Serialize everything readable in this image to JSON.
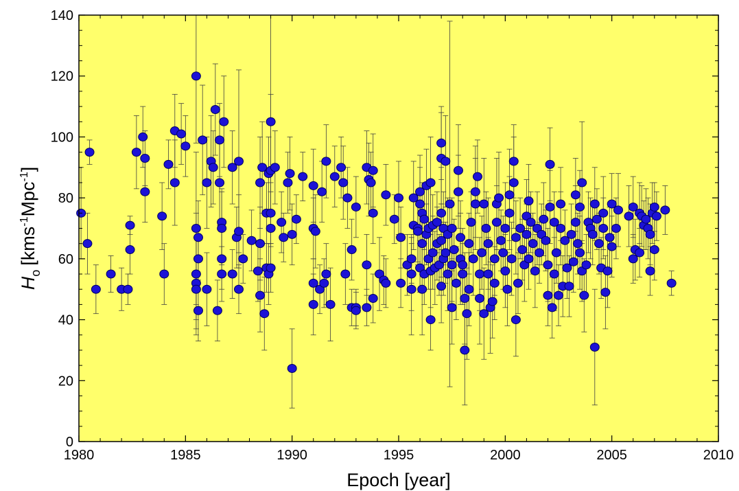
{
  "chart_data": {
    "type": "scatter",
    "title": "",
    "xlabel": "Epoch [year]",
    "ylabel": {
      "symbol": "H",
      "subscript": "o",
      "units": "[kms",
      "exp1": "-1",
      "mid": "Mpc",
      "exp2": "-1",
      "close": "]"
    },
    "xlim": [
      1980,
      2010
    ],
    "ylim": [
      0,
      140
    ],
    "x_ticks": [
      "1980",
      "1985",
      "1990",
      "1995",
      "2000",
      "2005",
      "2010"
    ],
    "y_ticks": [
      "0",
      "20",
      "40",
      "60",
      "80",
      "100",
      "120",
      "140"
    ],
    "grid": false,
    "legend": "none",
    "colors": {
      "plot_background": "#ffff6b",
      "marker_fill": "#1c12d6",
      "marker_stroke": "#000060",
      "error_bar": "#404040"
    },
    "points": [
      [
        1980.1,
        75,
        15
      ],
      [
        1980.4,
        65,
        10
      ],
      [
        1980.5,
        95,
        4
      ],
      [
        1980.8,
        50,
        8
      ],
      [
        1981.5,
        55,
        6
      ],
      [
        1982.0,
        50,
        7
      ],
      [
        1982.3,
        50,
        5
      ],
      [
        1982.4,
        63,
        8
      ],
      [
        1982.4,
        71,
        3
      ],
      [
        1982.7,
        95,
        12
      ],
      [
        1983.0,
        100,
        10
      ],
      [
        1983.1,
        82,
        10
      ],
      [
        1983.1,
        93,
        9
      ],
      [
        1983.9,
        74,
        11
      ],
      [
        1984.0,
        55,
        10
      ],
      [
        1984.2,
        91,
        8
      ],
      [
        1984.5,
        85,
        14
      ],
      [
        1984.5,
        102,
        12
      ],
      [
        1984.8,
        101,
        10
      ],
      [
        1985.0,
        97,
        10
      ],
      [
        1985.5,
        120,
        22
      ],
      [
        1985.5,
        70,
        25
      ],
      [
        1985.5,
        55,
        20
      ],
      [
        1985.5,
        52,
        15
      ],
      [
        1985.5,
        50,
        10
      ],
      [
        1985.6,
        43,
        10
      ],
      [
        1985.6,
        60,
        8
      ],
      [
        1985.6,
        67,
        12
      ],
      [
        1985.8,
        99,
        18
      ],
      [
        1986.0,
        85,
        15
      ],
      [
        1986.0,
        50,
        12
      ],
      [
        1986.2,
        92,
        15
      ],
      [
        1986.3,
        90,
        12
      ],
      [
        1986.4,
        109,
        15
      ],
      [
        1986.5,
        43,
        10
      ],
      [
        1986.6,
        99,
        12
      ],
      [
        1986.6,
        85,
        14
      ],
      [
        1986.7,
        60,
        10
      ],
      [
        1986.7,
        55,
        9
      ],
      [
        1986.7,
        72,
        11
      ],
      [
        1986.7,
        70,
        12
      ],
      [
        1986.8,
        105,
        15
      ],
      [
        1987.2,
        55,
        8
      ],
      [
        1987.2,
        90,
        12
      ],
      [
        1987.4,
        67,
        10
      ],
      [
        1987.5,
        92,
        30
      ],
      [
        1987.5,
        69,
        12
      ],
      [
        1987.5,
        50,
        8
      ],
      [
        1987.7,
        60,
        8
      ],
      [
        1988.1,
        66,
        10
      ],
      [
        1988.4,
        56,
        10
      ],
      [
        1988.5,
        48,
        12
      ],
      [
        1988.5,
        85,
        15
      ],
      [
        1988.5,
        65,
        12
      ],
      [
        1988.6,
        90,
        15
      ],
      [
        1988.7,
        42,
        12
      ],
      [
        1988.8,
        57,
        8
      ],
      [
        1988.8,
        75,
        10
      ],
      [
        1988.9,
        88,
        12
      ],
      [
        1988.9,
        55,
        10
      ],
      [
        1989.0,
        75,
        10
      ],
      [
        1989.0,
        70,
        12
      ],
      [
        1989.0,
        89,
        25
      ],
      [
        1989.0,
        57,
        8
      ],
      [
        1989.0,
        105,
        35
      ],
      [
        1989.2,
        90,
        12
      ],
      [
        1989.5,
        72,
        10
      ],
      [
        1989.6,
        67,
        8
      ],
      [
        1989.8,
        85,
        10
      ],
      [
        1989.9,
        88,
        12
      ],
      [
        1990.0,
        68,
        10
      ],
      [
        1990.0,
        24,
        13
      ],
      [
        1990.2,
        73,
        8
      ],
      [
        1990.5,
        87,
        8
      ],
      [
        1991.0,
        45,
        10
      ],
      [
        1991.0,
        84,
        12
      ],
      [
        1991.0,
        70,
        10
      ],
      [
        1991.0,
        52,
        8
      ],
      [
        1991.1,
        69,
        12
      ],
      [
        1991.3,
        50,
        8
      ],
      [
        1991.4,
        82,
        10
      ],
      [
        1991.5,
        52,
        8
      ],
      [
        1991.6,
        92,
        12
      ],
      [
        1991.6,
        55,
        10
      ],
      [
        1991.8,
        45,
        12
      ],
      [
        1992.0,
        87,
        10
      ],
      [
        1992.3,
        90,
        10
      ],
      [
        1992.4,
        85,
        12
      ],
      [
        1992.5,
        55,
        10
      ],
      [
        1992.6,
        80,
        10
      ],
      [
        1992.8,
        44,
        6
      ],
      [
        1992.8,
        63,
        10
      ],
      [
        1993.0,
        77,
        10
      ],
      [
        1993.0,
        44,
        6
      ],
      [
        1993.0,
        43,
        6
      ],
      [
        1993.5,
        90,
        12
      ],
      [
        1993.5,
        58,
        10
      ],
      [
        1993.5,
        44,
        6
      ],
      [
        1993.6,
        86,
        12
      ],
      [
        1993.7,
        85,
        10
      ],
      [
        1993.8,
        89,
        12
      ],
      [
        1993.8,
        47,
        8
      ],
      [
        1993.8,
        75,
        10
      ],
      [
        1994.1,
        55,
        12
      ],
      [
        1994.3,
        53,
        8
      ],
      [
        1994.4,
        81,
        10
      ],
      [
        1994.4,
        52,
        8
      ],
      [
        1994.8,
        73,
        8
      ],
      [
        1995.0,
        80,
        12
      ],
      [
        1995.1,
        52,
        8
      ],
      [
        1995.1,
        67,
        10
      ],
      [
        1995.4,
        58,
        10
      ],
      [
        1995.6,
        55,
        12
      ],
      [
        1995.6,
        60,
        8
      ],
      [
        1995.6,
        50,
        15
      ],
      [
        1995.7,
        80,
        12
      ],
      [
        1995.7,
        71,
        8
      ],
      [
        1995.9,
        70,
        12
      ],
      [
        1995.9,
        69,
        10
      ],
      [
        1996.0,
        57,
        8
      ],
      [
        1996.0,
        82,
        12
      ],
      [
        1996.0,
        78,
        12
      ],
      [
        1996.1,
        75,
        10
      ],
      [
        1996.1,
        65,
        10
      ],
      [
        1996.1,
        50,
        15
      ],
      [
        1996.2,
        73,
        10
      ],
      [
        1996.2,
        55,
        10
      ],
      [
        1996.3,
        68,
        10
      ],
      [
        1996.3,
        84,
        12
      ],
      [
        1996.4,
        60,
        10
      ],
      [
        1996.4,
        70,
        15
      ],
      [
        1996.5,
        56,
        12
      ],
      [
        1996.5,
        40,
        10
      ],
      [
        1996.5,
        85,
        15
      ],
      [
        1996.6,
        62,
        12
      ],
      [
        1996.6,
        71,
        10
      ],
      [
        1996.7,
        57,
        12
      ],
      [
        1996.8,
        72,
        10
      ],
      [
        1996.8,
        65,
        12
      ],
      [
        1996.9,
        58,
        10
      ],
      [
        1997.0,
        98,
        12
      ],
      [
        1997.0,
        51,
        12
      ],
      [
        1997.0,
        75,
        15
      ],
      [
        1997.0,
        93,
        15
      ],
      [
        1997.0,
        66,
        12
      ],
      [
        1997.1,
        60,
        12
      ],
      [
        1997.1,
        70,
        12
      ],
      [
        1997.2,
        92,
        15
      ],
      [
        1997.2,
        62,
        10
      ],
      [
        1997.3,
        55,
        12
      ],
      [
        1997.3,
        68,
        12
      ],
      [
        1997.4,
        78,
        60
      ],
      [
        1997.5,
        58,
        12
      ],
      [
        1997.5,
        44,
        12
      ],
      [
        1997.5,
        70,
        10
      ],
      [
        1997.6,
        63,
        10
      ],
      [
        1997.7,
        52,
        12
      ],
      [
        1997.8,
        89,
        15
      ],
      [
        1997.8,
        82,
        12
      ],
      [
        1997.9,
        60,
        15
      ],
      [
        1997.9,
        67,
        12
      ],
      [
        1998.0,
        55,
        10
      ],
      [
        1998.0,
        58,
        12
      ],
      [
        1998.1,
        47,
        15
      ],
      [
        1998.1,
        30,
        18
      ],
      [
        1998.2,
        42,
        15
      ],
      [
        1998.3,
        50,
        12
      ],
      [
        1998.3,
        65,
        10
      ],
      [
        1998.4,
        72,
        10
      ],
      [
        1998.5,
        60,
        12
      ],
      [
        1998.6,
        78,
        15
      ],
      [
        1998.6,
        82,
        15
      ],
      [
        1998.7,
        87,
        12
      ],
      [
        1998.8,
        55,
        12
      ],
      [
        1998.8,
        47,
        15
      ],
      [
        1998.9,
        62,
        12
      ],
      [
        1999.0,
        42,
        15
      ],
      [
        1999.0,
        78,
        15
      ],
      [
        1999.1,
        70,
        12
      ],
      [
        1999.2,
        65,
        15
      ],
      [
        1999.2,
        55,
        12
      ],
      [
        1999.3,
        44,
        15
      ],
      [
        1999.4,
        46,
        12
      ],
      [
        1999.5,
        60,
        12
      ],
      [
        1999.5,
        52,
        12
      ],
      [
        1999.6,
        78,
        15
      ],
      [
        1999.6,
        72,
        12
      ],
      [
        1999.7,
        80,
        15
      ],
      [
        1999.8,
        66,
        10
      ],
      [
        1999.9,
        62,
        12
      ],
      [
        2000.0,
        70,
        15
      ],
      [
        2000.0,
        56,
        12
      ],
      [
        2000.1,
        50,
        12
      ],
      [
        2000.2,
        81,
        15
      ],
      [
        2000.2,
        75,
        12
      ],
      [
        2000.3,
        60,
        12
      ],
      [
        2000.4,
        92,
        12
      ],
      [
        2000.4,
        85,
        15
      ],
      [
        2000.5,
        40,
        12
      ],
      [
        2000.5,
        67,
        12
      ],
      [
        2000.6,
        52,
        10
      ],
      [
        2000.7,
        70,
        10
      ],
      [
        2000.8,
        63,
        10
      ],
      [
        2000.9,
        58,
        12
      ],
      [
        2001.0,
        74,
        12
      ],
      [
        2001.0,
        68,
        10
      ],
      [
        2001.1,
        79,
        12
      ],
      [
        2001.1,
        60,
        10
      ],
      [
        2001.2,
        72,
        10
      ],
      [
        2001.3,
        65,
        10
      ],
      [
        2001.4,
        56,
        12
      ],
      [
        2001.5,
        70,
        12
      ],
      [
        2001.6,
        62,
        10
      ],
      [
        2001.7,
        68,
        10
      ],
      [
        2001.8,
        73,
        12
      ],
      [
        2001.9,
        66,
        10
      ],
      [
        2002.0,
        48,
        10
      ],
      [
        2002.0,
        58,
        12
      ],
      [
        2002.1,
        77,
        12
      ],
      [
        2002.1,
        91,
        12
      ],
      [
        2002.2,
        44,
        10
      ],
      [
        2002.3,
        55,
        12
      ],
      [
        2002.3,
        72,
        10
      ],
      [
        2002.4,
        62,
        10
      ],
      [
        2002.5,
        48,
        10
      ],
      [
        2002.6,
        70,
        12
      ],
      [
        2002.6,
        78,
        12
      ],
      [
        2002.7,
        51,
        10
      ],
      [
        2002.8,
        66,
        10
      ],
      [
        2002.9,
        57,
        10
      ],
      [
        2003.0,
        51,
        10
      ],
      [
        2003.1,
        68,
        10
      ],
      [
        2003.2,
        59,
        10
      ],
      [
        2003.3,
        72,
        12
      ],
      [
        2003.3,
        81,
        12
      ],
      [
        2003.4,
        65,
        10
      ],
      [
        2003.5,
        77,
        12
      ],
      [
        2003.5,
        62,
        12
      ],
      [
        2003.6,
        85,
        20
      ],
      [
        2003.6,
        56,
        10
      ],
      [
        2003.7,
        48,
        12
      ],
      [
        2003.8,
        58,
        10
      ],
      [
        2003.9,
        72,
        10
      ],
      [
        2004.0,
        70,
        10
      ],
      [
        2004.1,
        68,
        10
      ],
      [
        2004.2,
        78,
        12
      ],
      [
        2004.2,
        31,
        19
      ],
      [
        2004.3,
        73,
        10
      ],
      [
        2004.4,
        65,
        10
      ],
      [
        2004.5,
        57,
        10
      ],
      [
        2004.6,
        75,
        12
      ],
      [
        2004.6,
        70,
        10
      ],
      [
        2004.7,
        49,
        12
      ],
      [
        2004.8,
        56,
        12
      ],
      [
        2004.9,
        67,
        10
      ],
      [
        2005.0,
        78,
        10
      ],
      [
        2005.0,
        64,
        10
      ],
      [
        2005.2,
        70,
        10
      ],
      [
        2005.3,
        76,
        12
      ],
      [
        2005.8,
        74,
        10
      ],
      [
        2006.0,
        77,
        10
      ],
      [
        2006.0,
        60,
        8
      ],
      [
        2006.1,
        63,
        10
      ],
      [
        2006.3,
        75,
        10
      ],
      [
        2006.3,
        62,
        8
      ],
      [
        2006.4,
        74,
        10
      ],
      [
        2006.5,
        71,
        8
      ],
      [
        2006.6,
        73,
        10
      ],
      [
        2006.7,
        70,
        10
      ],
      [
        2006.8,
        56,
        8
      ],
      [
        2006.8,
        68,
        10
      ],
      [
        2006.9,
        75,
        10
      ],
      [
        2007.0,
        63,
        10
      ],
      [
        2007.0,
        77,
        8
      ],
      [
        2007.1,
        74,
        8
      ],
      [
        2007.5,
        76,
        8
      ],
      [
        2007.8,
        52,
        4
      ]
    ]
  }
}
